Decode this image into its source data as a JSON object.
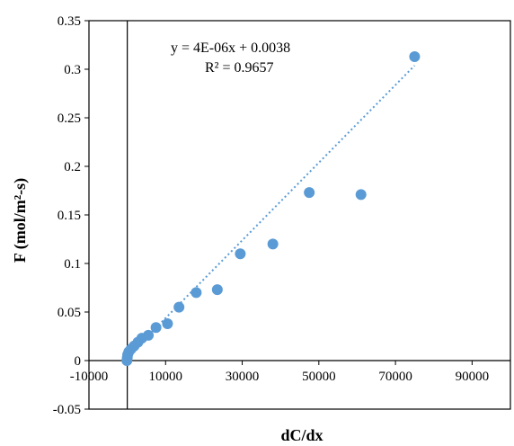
{
  "chart_data": {
    "type": "scatter",
    "xlabel": "dC/dx",
    "ylabel": "F (mol/m²-s)",
    "xlim": [
      -10000,
      100000
    ],
    "ylim": [
      -0.05,
      0.35
    ],
    "x_ticks": [
      -10000,
      10000,
      30000,
      50000,
      70000,
      90000
    ],
    "x_tick_labels": [
      "-10000",
      "10000",
      "30000",
      "50000",
      "70000",
      "90000"
    ],
    "y_ticks": [
      -0.05,
      0,
      0.05,
      0.1,
      0.15,
      0.2,
      0.25,
      0.3,
      0.35
    ],
    "y_tick_labels": [
      "-0.05",
      "0",
      "0.05",
      "0.1",
      "0.15",
      "0.2",
      "0.25",
      "0.3",
      "0.35"
    ],
    "grid": false,
    "legend": "none",
    "marker_color": "#5b9bd5",
    "trendline_color": "#5b9bd5",
    "series": [
      {
        "points": [
          {
            "x": -100,
            "y": 0.0
          },
          {
            "x": 0,
            "y": 0.003
          },
          {
            "x": 100,
            "y": 0.006
          },
          {
            "x": 400,
            "y": 0.009
          },
          {
            "x": 1000,
            "y": 0.012
          },
          {
            "x": 1800,
            "y": 0.015
          },
          {
            "x": 2800,
            "y": 0.019
          },
          {
            "x": 3800,
            "y": 0.023
          },
          {
            "x": 5500,
            "y": 0.026
          },
          {
            "x": 7500,
            "y": 0.034
          },
          {
            "x": 10500,
            "y": 0.038
          },
          {
            "x": 13500,
            "y": 0.055
          },
          {
            "x": 18000,
            "y": 0.07
          },
          {
            "x": 23500,
            "y": 0.073
          },
          {
            "x": 29500,
            "y": 0.11
          },
          {
            "x": 38000,
            "y": 0.12
          },
          {
            "x": 47500,
            "y": 0.173
          },
          {
            "x": 61000,
            "y": 0.171
          },
          {
            "x": 75000,
            "y": 0.313
          }
        ]
      }
    ],
    "trendline": {
      "type": "linear",
      "slope": 4e-06,
      "intercept": 0.0038,
      "x_range": [
        -100,
        75000
      ]
    },
    "annotations": {
      "equation": "y = 4E-06x + 0.0038",
      "r_squared": "R² = 0.9657"
    }
  }
}
